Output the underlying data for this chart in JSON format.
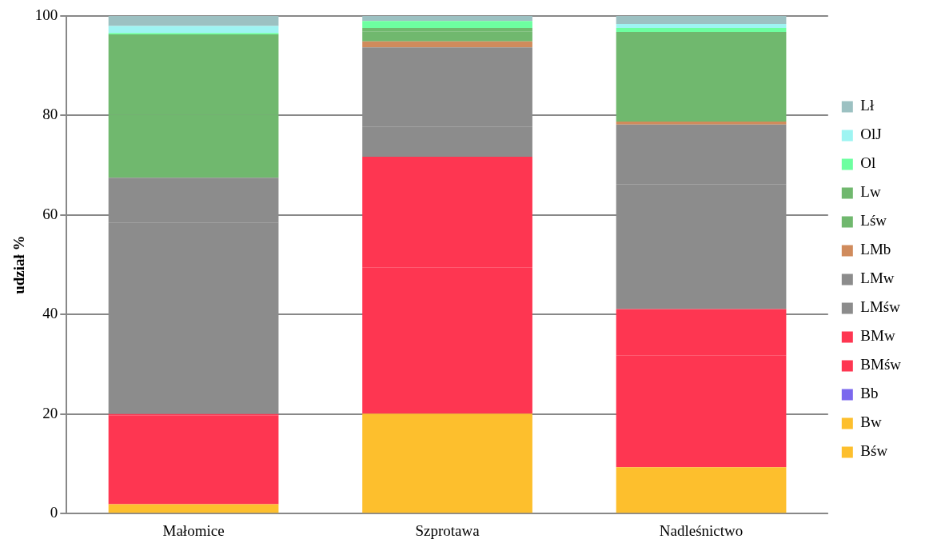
{
  "chart_data": {
    "type": "bar",
    "stacked": true,
    "ylabel": "udział %",
    "categories": [
      "Małomice",
      "Szprotawa",
      "Nadleśnictwo"
    ],
    "ylim": [
      0,
      100
    ],
    "yticks": [
      0,
      20,
      40,
      60,
      80,
      100
    ],
    "grid": "y",
    "legend": "right",
    "series": [
      {
        "name": "Bśw",
        "color": "#fdbf2d",
        "values": [
          1.9,
          20.1,
          9.3
        ]
      },
      {
        "name": "Bw",
        "color": "#fdbf2d",
        "values": [
          0,
          0,
          0
        ]
      },
      {
        "name": "Bb",
        "color": "#7b68ee",
        "values": [
          0,
          0,
          0
        ]
      },
      {
        "name": "BMśw",
        "color": "#fe3651",
        "values": [
          17.8,
          29.4,
          22.5
        ]
      },
      {
        "name": "BMw",
        "color": "#fe3651",
        "values": [
          0.3,
          22.2,
          9.3
        ]
      },
      {
        "name": "LMśw",
        "color": "#8c8c8c",
        "values": [
          38.4,
          6.1,
          25.1
        ]
      },
      {
        "name": "LMw",
        "color": "#8c8c8c",
        "values": [
          9.1,
          15.9,
          12.0
        ]
      },
      {
        "name": "LMb",
        "color": "#d08b5c",
        "values": [
          0,
          1.2,
          0.6
        ]
      },
      {
        "name": "Lśw",
        "color": "#70b86e",
        "values": [
          12.6,
          2.0,
          8.2
        ]
      },
      {
        "name": "Lw",
        "color": "#70b86e",
        "values": [
          16.2,
          0.7,
          9.8
        ]
      },
      {
        "name": "Ol",
        "color": "#6dffa0",
        "values": [
          0.3,
          1.4,
          0.8
        ]
      },
      {
        "name": "OlJ",
        "color": "#9ef4f2",
        "values": [
          1.4,
          0,
          0.8
        ]
      },
      {
        "name": "Lł",
        "color": "#9cc1c2",
        "values": [
          2.0,
          1.0,
          1.6
        ]
      }
    ]
  }
}
